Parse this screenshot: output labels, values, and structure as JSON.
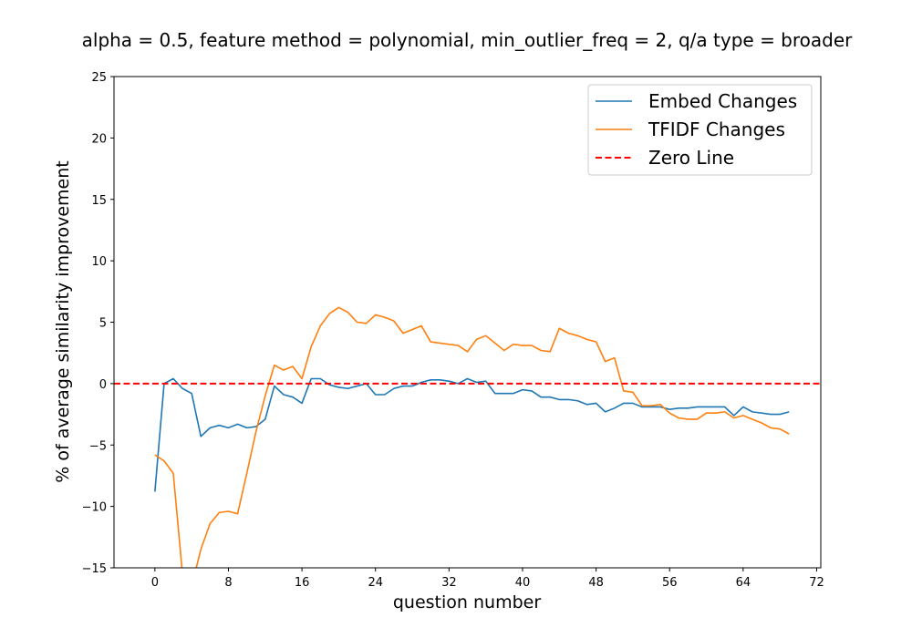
{
  "chart_data": {
    "type": "line",
    "title": "alpha = 0.5,  feature method = polynomial, min_outlier_freq = 2,  q/a type = broader",
    "xlabel": "question number",
    "ylabel": "% of average similarity improvement",
    "xlim": [
      -4.45,
      72.45
    ],
    "ylim": [
      -15,
      25
    ],
    "xticks": [
      0,
      8,
      16,
      24,
      32,
      40,
      48,
      56,
      64,
      72
    ],
    "yticks": [
      -15,
      -10,
      -5,
      0,
      5,
      10,
      15,
      20,
      25
    ],
    "grid": false,
    "legend_position": "top-right",
    "series": [
      {
        "name": "Embed Changes",
        "color": "#1f77b4",
        "style": "solid",
        "x": [
          0,
          1,
          2,
          3,
          4,
          5,
          6,
          7,
          8,
          9,
          10,
          11,
          12,
          13,
          14,
          15,
          16,
          17,
          18,
          19,
          20,
          21,
          22,
          23,
          24,
          25,
          26,
          27,
          28,
          29,
          30,
          31,
          32,
          33,
          34,
          35,
          36,
          37,
          38,
          39,
          40,
          41,
          42,
          43,
          44,
          45,
          46,
          47,
          48,
          49,
          50,
          51,
          52,
          53,
          54,
          55,
          56,
          57,
          58,
          59,
          60,
          61,
          62,
          63,
          64,
          65,
          66,
          67,
          68,
          69
        ],
        "y": [
          -8.8,
          0.0,
          0.4,
          -0.4,
          -0.8,
          -4.3,
          -3.6,
          -3.4,
          -3.6,
          -3.3,
          -3.6,
          -3.5,
          -2.9,
          -0.2,
          -0.9,
          -1.1,
          -1.6,
          0.4,
          0.4,
          -0.1,
          -0.3,
          -0.4,
          -0.2,
          0.0,
          -0.9,
          -0.9,
          -0.4,
          -0.2,
          -0.2,
          0.1,
          0.3,
          0.3,
          0.2,
          0.0,
          0.4,
          0.1,
          0.2,
          -0.8,
          -0.8,
          -0.8,
          -0.5,
          -0.6,
          -1.1,
          -1.1,
          -1.3,
          -1.3,
          -1.4,
          -1.7,
          -1.6,
          -2.3,
          -2.0,
          -1.6,
          -1.6,
          -1.9,
          -1.9,
          -1.9,
          -2.1,
          -2.0,
          -2.0,
          -1.9,
          -1.9,
          -1.9,
          -1.9,
          -2.6,
          -1.9,
          -2.3,
          -2.4,
          -2.5,
          -2.5,
          -2.3
        ]
      },
      {
        "name": "TFIDF Changes",
        "color": "#ff7f0e",
        "style": "solid",
        "x": [
          0,
          1,
          2,
          3,
          4,
          5,
          6,
          7,
          8,
          9,
          10,
          11,
          12,
          13,
          14,
          15,
          16,
          17,
          18,
          19,
          20,
          21,
          22,
          23,
          24,
          25,
          26,
          27,
          28,
          29,
          30,
          31,
          32,
          33,
          34,
          35,
          36,
          37,
          38,
          39,
          40,
          41,
          42,
          43,
          44,
          45,
          46,
          47,
          48,
          49,
          50,
          51,
          52,
          53,
          54,
          55,
          56,
          57,
          58,
          59,
          60,
          61,
          62,
          63,
          64,
          65,
          66,
          67,
          68,
          69
        ],
        "y": [
          -5.8,
          -6.3,
          -7.3,
          -15.5,
          -16.5,
          -13.5,
          -11.4,
          -10.5,
          -10.4,
          -10.6,
          -7.3,
          -3.9,
          -1.0,
          1.5,
          1.1,
          1.4,
          0.4,
          3.0,
          4.7,
          5.7,
          6.2,
          5.8,
          5.0,
          4.9,
          5.6,
          5.4,
          5.1,
          4.1,
          4.4,
          4.7,
          3.4,
          3.3,
          3.2,
          3.1,
          2.6,
          3.6,
          3.9,
          3.3,
          2.7,
          3.2,
          3.1,
          3.1,
          2.7,
          2.6,
          4.5,
          4.1,
          3.9,
          3.6,
          3.4,
          1.8,
          2.1,
          -0.6,
          -0.7,
          -1.8,
          -1.8,
          -1.7,
          -2.4,
          -2.8,
          -2.9,
          -2.9,
          -2.4,
          -2.4,
          -2.3,
          -2.8,
          -2.6,
          -2.9,
          -3.2,
          -3.6,
          -3.7,
          -4.1
        ]
      },
      {
        "name": "Zero Line",
        "color": "#ff0000",
        "style": "dashed",
        "x": [
          -4.45,
          72.45
        ],
        "y": [
          0,
          0
        ]
      }
    ]
  }
}
